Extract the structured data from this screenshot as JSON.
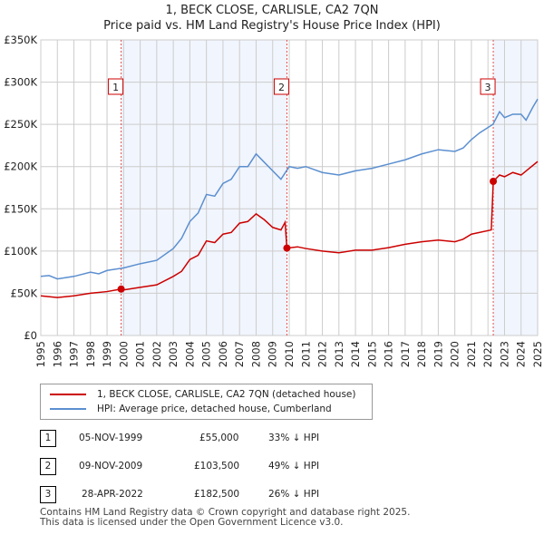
{
  "title": "1, BECK CLOSE, CARLISLE, CA2 7QN",
  "subtitle": "Price paid vs. HM Land Registry's House Price Index (HPI)",
  "chart_data": {
    "type": "line",
    "title": "1, BECK CLOSE, CARLISLE, CA2 7QN",
    "subtitle": "Price paid vs. HM Land Registry's House Price Index (HPI)",
    "xlim": [
      1995,
      2025
    ],
    "ylim": [
      0,
      350000
    ],
    "yticks": [
      0,
      50000,
      100000,
      150000,
      200000,
      250000,
      300000,
      350000
    ],
    "ytick_labels": [
      "£0",
      "£50K",
      "£100K",
      "£150K",
      "£200K",
      "£250K",
      "£300K",
      "£350K"
    ],
    "xticks": [
      "1995",
      "1996",
      "1997",
      "1998",
      "1999",
      "2000",
      "2001",
      "2002",
      "2003",
      "2004",
      "2005",
      "2006",
      "2007",
      "2008",
      "2009",
      "2010",
      "2011",
      "2012",
      "2013",
      "2014",
      "2015",
      "2016",
      "2017",
      "2018",
      "2019",
      "2020",
      "2021",
      "2022",
      "2023",
      "2024",
      "2025"
    ],
    "grid": true,
    "series": [
      {
        "name": "1, BECK CLOSE, CARLISLE, CA2 7QN (detached house)",
        "color": "#cc0000",
        "x": [
          1995,
          1996,
          1997,
          1998,
          1999,
          1999.85,
          2000,
          2001,
          2002,
          2003,
          2003.5,
          2004,
          2004.5,
          2005,
          2005.5,
          2006,
          2006.5,
          2007,
          2007.5,
          2008,
          2008.5,
          2009,
          2009.5,
          2009.75,
          2009.86,
          2010.5,
          2011,
          2012,
          2013,
          2014,
          2015,
          2016,
          2017,
          2018,
          2019,
          2020,
          2020.5,
          2021,
          2022.2,
          2022.32,
          2022.7,
          2023,
          2023.5,
          2024,
          2024.5,
          2025
        ],
        "y": [
          47000,
          45000,
          47000,
          50000,
          52000,
          55000,
          54000,
          57000,
          60000,
          70000,
          76000,
          90000,
          95000,
          112000,
          110000,
          120000,
          122000,
          133000,
          135000,
          144000,
          137000,
          128000,
          125000,
          134000,
          103500,
          105000,
          103000,
          100000,
          98000,
          101000,
          101000,
          104000,
          108000,
          111000,
          113000,
          111000,
          114000,
          120000,
          125000,
          182500,
          190000,
          188000,
          193000,
          190000,
          198000,
          206000
        ]
      },
      {
        "name": "HPI: Average price, detached house, Cumberland",
        "color": "#5b8fd0",
        "x": [
          1995,
          1995.5,
          1996,
          1997,
          1998,
          1998.5,
          1999,
          2000,
          2001,
          2002,
          2003,
          2003.5,
          2004,
          2004.5,
          2005,
          2005.5,
          2006,
          2006.5,
          2007,
          2007.5,
          2008,
          2008.5,
          2009,
          2009.5,
          2010,
          2010.5,
          2011,
          2012,
          2013,
          2014,
          2015,
          2016,
          2017,
          2018,
          2019,
          2020,
          2020.5,
          2021,
          2021.5,
          2022.3,
          2022.7,
          2023,
          2023.5,
          2024,
          2024.3,
          2024.7,
          2025
        ],
        "y": [
          70000,
          71000,
          67000,
          70000,
          75000,
          73000,
          77000,
          80000,
          85000,
          89000,
          103000,
          115000,
          135000,
          145000,
          167000,
          165000,
          180000,
          185000,
          200000,
          200000,
          215000,
          205000,
          195000,
          185000,
          200000,
          198000,
          200000,
          193000,
          190000,
          195000,
          198000,
          203000,
          208000,
          215000,
          220000,
          218000,
          222000,
          232000,
          240000,
          250000,
          265000,
          258000,
          262000,
          262000,
          255000,
          270000,
          280000
        ]
      }
    ],
    "sales": [
      {
        "label": "1",
        "x": 1999.85,
        "y": 55000
      },
      {
        "label": "2",
        "x": 2009.86,
        "y": 103500
      },
      {
        "label": "3",
        "x": 2022.32,
        "y": 182500
      }
    ],
    "shaded_ranges": [
      [
        1999.85,
        2009.86
      ],
      [
        2022.32,
        2025
      ]
    ]
  },
  "legend": {
    "red": "1, BECK CLOSE, CARLISLE, CA2 7QN (detached house)",
    "blue": "HPI: Average price, detached house, Cumberland"
  },
  "table": [
    {
      "num": "1",
      "date": "05-NOV-1999",
      "price": "£55,000",
      "hpi": "33% ↓ HPI"
    },
    {
      "num": "2",
      "date": "09-NOV-2009",
      "price": "£103,500",
      "hpi": "49% ↓ HPI"
    },
    {
      "num": "3",
      "date": "28-APR-2022",
      "price": "£182,500",
      "hpi": "26% ↓ HPI"
    }
  ],
  "footer": {
    "line1": "Contains HM Land Registry data © Crown copyright and database right 2025.",
    "line2": "This data is licensed under the Open Government Licence v3.0."
  }
}
